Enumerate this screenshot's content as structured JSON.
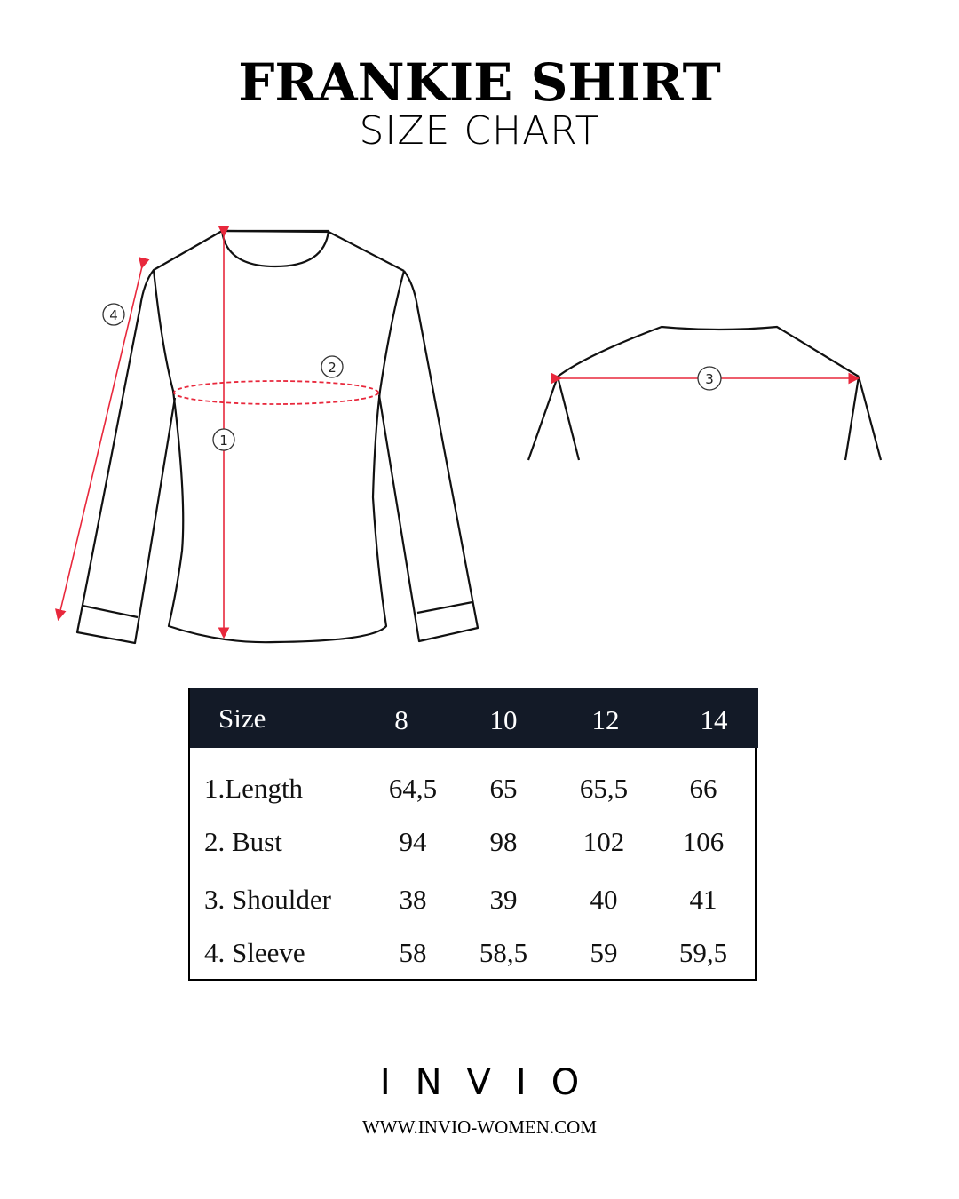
{
  "header": {
    "title": "FRANKIE SHIRT",
    "subtitle": "SIZE CHART"
  },
  "diagram": {
    "markers": [
      "1",
      "2",
      "3",
      "4"
    ],
    "accent_color": "#e8283c"
  },
  "table": {
    "header_bg": "#131a27",
    "columns": [
      "Size",
      "8",
      "10",
      "12",
      "14"
    ],
    "rows": [
      {
        "label": "1.Length",
        "values": [
          "64,5",
          "65",
          "65,5",
          "66"
        ]
      },
      {
        "label": "2. Bust",
        "values": [
          "94",
          "98",
          "102",
          "106"
        ]
      },
      {
        "label": "3. Shoulder",
        "values": [
          "38",
          "39",
          "40",
          "41"
        ]
      },
      {
        "label": "4. Sleeve",
        "values": [
          "58",
          "58,5",
          "59",
          "59,5"
        ]
      }
    ]
  },
  "footer": {
    "logo": "INVIO",
    "url": "WWW.INVIO-WOMEN.COM"
  }
}
